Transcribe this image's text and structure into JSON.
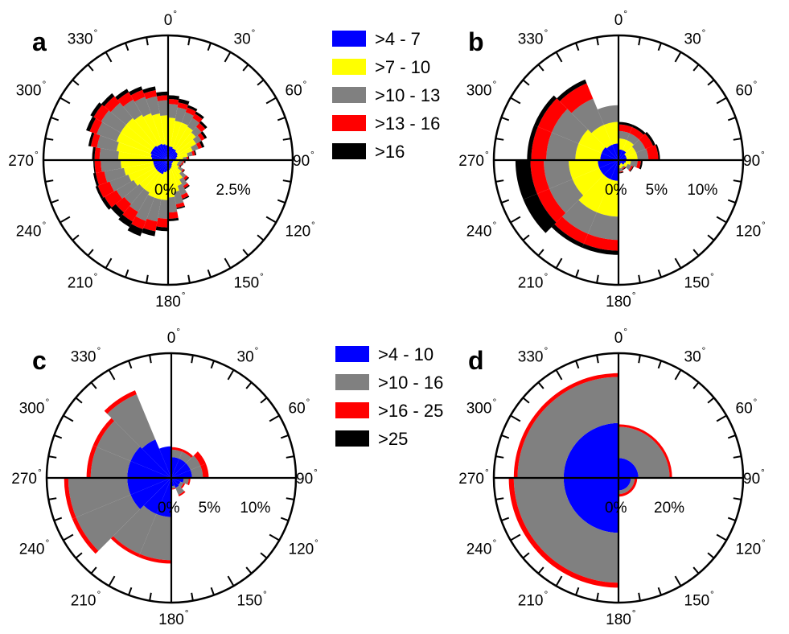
{
  "colors": {
    "blue": "#0000ff",
    "yellow": "#ffff00",
    "gray": "#808080",
    "red": "#ff0000",
    "black": "#000000"
  },
  "direction_labels": [
    "0",
    "30",
    "60",
    "90",
    "120",
    "150",
    "180",
    "210",
    "240",
    "270",
    "300",
    "330"
  ],
  "degree_symbol": "°",
  "legends": [
    {
      "entries": [
        {
          "label": ">4 - 7",
          "color": "#0000ff"
        },
        {
          "label": ">7 - 10",
          "color": "#ffff00"
        },
        {
          "label": ">10 - 13",
          "color": "#808080"
        },
        {
          "label": ">13 - 16",
          "color": "#ff0000"
        },
        {
          "label": ">16",
          "color": "#000000"
        }
      ]
    },
    {
      "entries": [
        {
          "label": ">4 - 10",
          "color": "#0000ff"
        },
        {
          "label": ">10 - 16",
          "color": "#808080"
        },
        {
          "label": ">16 - 25",
          "color": "#ff0000"
        },
        {
          "label": ">25",
          "color": "#000000"
        }
      ]
    }
  ],
  "chart_data": [
    {
      "type": "polar-bar",
      "panel": "a",
      "radial_max": 5,
      "radial_labels": [
        {
          "value": 0,
          "text": "0%"
        },
        {
          "value": 2.5,
          "text": "2.5%"
        }
      ],
      "colors": [
        "#0000ff",
        "#ffff00",
        "#808080",
        "#ff0000",
        "#000000"
      ],
      "series_labels": [
        ">4 - 7",
        ">7 - 10",
        ">10 - 13",
        ">13 - 16",
        ">16"
      ],
      "sector_width": 10,
      "sectors": [
        {
          "from": 200,
          "to": 210,
          "stack": [
            0.6,
            1.6,
            2.6,
            2.95,
            3.25
          ]
        },
        {
          "from": 210,
          "to": 220,
          "stack": [
            0.6,
            1.5,
            2.4,
            2.85,
            3.1
          ]
        },
        {
          "from": 220,
          "to": 230,
          "stack": [
            0.6,
            1.5,
            2.3,
            2.75,
            3.0
          ]
        },
        {
          "from": 230,
          "to": 240,
          "stack": [
            0.6,
            1.6,
            2.4,
            2.95,
            3.1
          ]
        },
        {
          "from": 240,
          "to": 250,
          "stack": [
            0.6,
            1.7,
            2.5,
            3.0,
            3.1
          ]
        },
        {
          "from": 250,
          "to": 260,
          "stack": [
            0.6,
            1.8,
            2.6,
            2.95,
            3.05
          ]
        },
        {
          "from": 260,
          "to": 270,
          "stack": [
            0.6,
            1.9,
            2.7,
            2.95,
            3.0
          ]
        },
        {
          "from": 270,
          "to": 280,
          "stack": [
            0.65,
            2.0,
            2.75,
            2.95,
            3.05
          ]
        },
        {
          "from": 280,
          "to": 290,
          "stack": [
            0.7,
            2.1,
            2.9,
            3.15,
            3.25
          ]
        },
        {
          "from": 290,
          "to": 300,
          "stack": [
            0.75,
            2.2,
            3.05,
            3.35,
            3.5
          ]
        },
        {
          "from": 300,
          "to": 310,
          "stack": [
            0.75,
            2.2,
            3.1,
            3.45,
            3.6
          ]
        },
        {
          "from": 310,
          "to": 320,
          "stack": [
            0.75,
            2.2,
            3.0,
            3.35,
            3.5
          ]
        },
        {
          "from": 320,
          "to": 330,
          "stack": [
            0.7,
            2.1,
            2.8,
            3.15,
            3.3
          ]
        },
        {
          "from": 330,
          "to": 340,
          "stack": [
            0.7,
            2.0,
            2.7,
            3.0,
            3.15
          ]
        },
        {
          "from": 340,
          "to": 350,
          "stack": [
            0.65,
            1.9,
            2.6,
            2.85,
            3.0
          ]
        },
        {
          "from": 350,
          "to": 360,
          "stack": [
            0.6,
            1.8,
            2.4,
            2.6,
            2.75
          ]
        },
        {
          "from": 0,
          "to": 10,
          "stack": [
            0.55,
            1.7,
            2.25,
            2.45,
            2.6
          ]
        },
        {
          "from": 10,
          "to": 20,
          "stack": [
            0.55,
            1.6,
            2.15,
            2.35,
            2.5
          ]
        },
        {
          "from": 20,
          "to": 30,
          "stack": [
            0.5,
            1.6,
            2.05,
            2.25,
            2.35
          ]
        },
        {
          "from": 30,
          "to": 40,
          "stack": [
            0.5,
            1.55,
            1.95,
            2.15,
            2.25
          ]
        },
        {
          "from": 40,
          "to": 50,
          "stack": [
            0.45,
            1.45,
            1.75,
            1.95,
            2.05
          ]
        },
        {
          "from": 50,
          "to": 60,
          "stack": [
            0.45,
            1.3,
            1.55,
            1.7,
            1.8
          ]
        },
        {
          "from": 60,
          "to": 70,
          "stack": [
            0.4,
            1.05,
            1.3,
            1.45,
            1.55
          ]
        },
        {
          "from": 70,
          "to": 80,
          "stack": [
            0.35,
            0.8,
            1.0,
            1.1,
            1.15
          ]
        },
        {
          "from": 80,
          "to": 90,
          "stack": [
            0.3,
            0.6,
            0.75,
            0.82,
            0.85
          ]
        },
        {
          "from": 90,
          "to": 100,
          "stack": [
            0.25,
            0.45,
            0.6,
            0.65,
            0.7
          ]
        },
        {
          "from": 100,
          "to": 110,
          "stack": [
            0.2,
            0.4,
            0.55,
            0.6,
            0.62
          ]
        },
        {
          "from": 110,
          "to": 120,
          "stack": [
            0.2,
            0.4,
            0.5,
            0.55,
            0.58
          ]
        },
        {
          "from": 120,
          "to": 130,
          "stack": [
            0.2,
            0.5,
            0.7,
            0.75,
            0.78
          ]
        },
        {
          "from": 130,
          "to": 140,
          "stack": [
            0.2,
            0.7,
            0.95,
            1.05,
            1.1
          ]
        },
        {
          "from": 140,
          "to": 150,
          "stack": [
            0.25,
            0.9,
            1.2,
            1.3,
            1.35
          ]
        },
        {
          "from": 150,
          "to": 160,
          "stack": [
            0.3,
            1.1,
            1.5,
            1.65,
            1.7
          ]
        },
        {
          "from": 160,
          "to": 170,
          "stack": [
            0.35,
            1.3,
            1.8,
            1.95,
            2.0
          ]
        },
        {
          "from": 170,
          "to": 180,
          "stack": [
            0.4,
            1.5,
            2.1,
            2.35,
            2.45
          ]
        },
        {
          "from": 180,
          "to": 190,
          "stack": [
            0.45,
            1.6,
            2.35,
            2.7,
            2.85
          ]
        },
        {
          "from": 190,
          "to": 200,
          "stack": [
            0.5,
            1.6,
            2.5,
            2.9,
            3.1
          ]
        }
      ]
    },
    {
      "type": "polar-bar",
      "panel": "b",
      "radial_max": 15,
      "radial_labels": [
        {
          "value": 0,
          "text": "0%"
        },
        {
          "value": 5,
          "text": "5%"
        },
        {
          "value": 10,
          "text": "10%"
        }
      ],
      "colors": [
        "#0000ff",
        "#ffff00",
        "#808080",
        "#ff0000",
        "#000000"
      ],
      "series_labels": [
        ">4 - 7",
        ">7 - 10",
        ">10 - 13",
        ">13 - 16",
        ">16"
      ],
      "sector_width": 22.5,
      "sectors": [
        {
          "from": 0,
          "to": 22.5,
          "stack": [
            1.3,
            2.6,
            3.5,
            4.3,
            4.6
          ]
        },
        {
          "from": 22.5,
          "to": 45,
          "stack": [
            1.3,
            2.6,
            3.5,
            4.3,
            4.6
          ]
        },
        {
          "from": 45,
          "to": 67.5,
          "stack": [
            1.0,
            2.3,
            3.5,
            4.5,
            4.8
          ]
        },
        {
          "from": 67.5,
          "to": 90,
          "stack": [
            1.0,
            2.3,
            3.6,
            4.8,
            5.0
          ]
        },
        {
          "from": 90,
          "to": 112.5,
          "stack": [
            0.9,
            1.5,
            2.3,
            2.7,
            2.9
          ]
        },
        {
          "from": 112.5,
          "to": 135,
          "stack": [
            0.8,
            1.2,
            1.7,
            1.9,
            2.0
          ]
        },
        {
          "from": 135,
          "to": 157.5,
          "stack": [
            0.5,
            0.9,
            1.1,
            1.2,
            1.3
          ]
        },
        {
          "from": 157.5,
          "to": 180,
          "stack": [
            0.6,
            1.0,
            1.4,
            1.5,
            1.6
          ]
        },
        {
          "from": 180,
          "to": 202.5,
          "stack": [
            2.5,
            6.8,
            9.6,
            10.9,
            11.4
          ]
        },
        {
          "from": 202.5,
          "to": 225,
          "stack": [
            2.5,
            6.8,
            9.6,
            10.9,
            11.4
          ]
        },
        {
          "from": 225,
          "to": 247.5,
          "stack": [
            2.5,
            6.0,
            9.0,
            10.6,
            12.4
          ]
        },
        {
          "from": 247.5,
          "to": 270,
          "stack": [
            2.5,
            6.0,
            9.0,
            10.6,
            12.4
          ]
        },
        {
          "from": 270,
          "to": 292.5,
          "stack": [
            2.2,
            5.2,
            8.7,
            10.5,
            11.0
          ]
        },
        {
          "from": 292.5,
          "to": 315,
          "stack": [
            2.2,
            5.2,
            8.7,
            10.5,
            11.0
          ]
        },
        {
          "from": 315,
          "to": 337.5,
          "stack": [
            2.0,
            4.6,
            8.0,
            10.0,
            10.5
          ]
        },
        {
          "from": 337.5,
          "to": 360,
          "stack": [
            2.0,
            4.6,
            6.6,
            6.6,
            6.6
          ]
        }
      ]
    },
    {
      "type": "polar-bar",
      "panel": "c",
      "radial_max": 15,
      "radial_labels": [
        {
          "value": 0,
          "text": "0%"
        },
        {
          "value": 5,
          "text": "5%"
        },
        {
          "value": 10,
          "text": "10%"
        }
      ],
      "colors": [
        "#0000ff",
        "#808080",
        "#ff0000",
        "#000000"
      ],
      "series_labels": [
        ">4 - 10",
        ">10 - 16",
        ">16 - 25",
        ">25"
      ],
      "sector_width": 22.5,
      "sectors": [
        {
          "from": 0,
          "to": 22.5,
          "stack": [
            2.5,
            3.4,
            3.7,
            3.7
          ]
        },
        {
          "from": 22.5,
          "to": 45,
          "stack": [
            2.5,
            3.4,
            3.7,
            3.7
          ]
        },
        {
          "from": 45,
          "to": 67.5,
          "stack": [
            2.5,
            3.8,
            4.5,
            4.5
          ]
        },
        {
          "from": 67.5,
          "to": 90,
          "stack": [
            2.5,
            3.8,
            4.5,
            4.5
          ]
        },
        {
          "from": 90,
          "to": 112.5,
          "stack": [
            1.5,
            2.1,
            2.3,
            2.3
          ]
        },
        {
          "from": 112.5,
          "to": 135,
          "stack": [
            1.2,
            1.6,
            1.8,
            1.8
          ]
        },
        {
          "from": 135,
          "to": 157.5,
          "stack": [
            1.3,
            2.2,
            2.4,
            2.4
          ]
        },
        {
          "from": 157.5,
          "to": 180,
          "stack": [
            1.0,
            1.3,
            1.4,
            1.4
          ]
        },
        {
          "from": 180,
          "to": 202.5,
          "stack": [
            4.7,
            9.9,
            10.3,
            10.3
          ]
        },
        {
          "from": 202.5,
          "to": 225,
          "stack": [
            4.7,
            9.9,
            10.3,
            10.3
          ]
        },
        {
          "from": 225,
          "to": 247.5,
          "stack": [
            5.3,
            12.4,
            12.9,
            12.9
          ]
        },
        {
          "from": 247.5,
          "to": 270,
          "stack": [
            5.3,
            12.4,
            12.9,
            12.9
          ]
        },
        {
          "from": 270,
          "to": 292.5,
          "stack": [
            5.3,
            9.7,
            10.2,
            10.2
          ]
        },
        {
          "from": 292.5,
          "to": 315,
          "stack": [
            5.3,
            9.7,
            10.2,
            10.2
          ]
        },
        {
          "from": 315,
          "to": 337.5,
          "stack": [
            5.0,
            10.9,
            11.4,
            11.4
          ]
        },
        {
          "from": 337.5,
          "to": 360,
          "stack": [
            3.8,
            3.8,
            3.8,
            3.8
          ]
        }
      ]
    },
    {
      "type": "polar-bar",
      "panel": "d",
      "radial_max": 50,
      "radial_labels": [
        {
          "value": 0,
          "text": "0%"
        },
        {
          "value": 20,
          "text": "20%"
        }
      ],
      "colors": [
        "#0000ff",
        "#808080",
        "#ff0000",
        "#000000"
      ],
      "series_labels": [
        ">4 - 10",
        ">10 - 16",
        ">16 - 25",
        ">25"
      ],
      "sector_width": 90,
      "sectors": [
        {
          "from": 0,
          "to": 90,
          "stack": [
            8,
            20.5,
            21.5,
            21.5
          ]
        },
        {
          "from": 90,
          "to": 180,
          "stack": [
            5,
            6.5,
            7.5,
            7.5
          ]
        },
        {
          "from": 180,
          "to": 270,
          "stack": [
            22,
            42,
            44,
            44
          ]
        },
        {
          "from": 270,
          "to": 360,
          "stack": [
            22,
            40.5,
            42,
            42
          ]
        }
      ]
    }
  ],
  "panels": [
    {
      "letter": "a"
    },
    {
      "letter": "b"
    },
    {
      "letter": "c"
    },
    {
      "letter": "d"
    }
  ]
}
